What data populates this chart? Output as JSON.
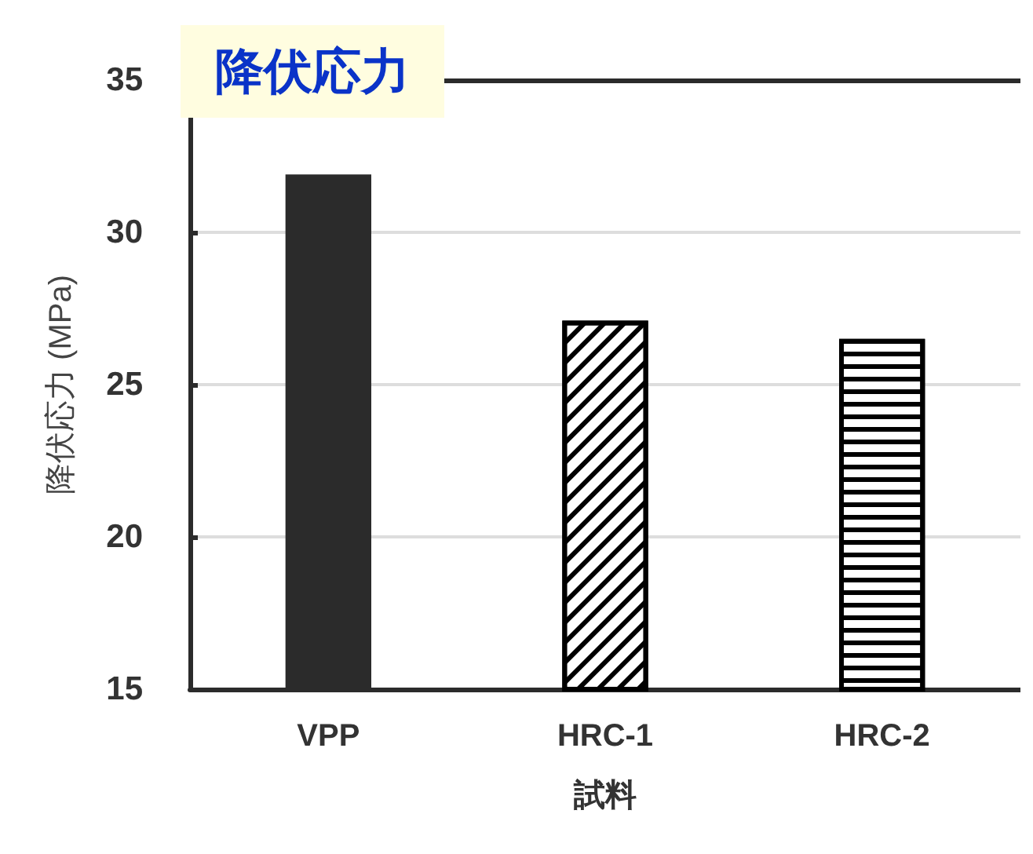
{
  "chart_data": {
    "type": "bar",
    "title": "降伏応力",
    "xlabel": "試料",
    "ylabel": "降伏応力 (MPa)",
    "categories": [
      "VPP",
      "HRC-1",
      "HRC-2"
    ],
    "values": [
      31.9,
      27.1,
      26.5
    ],
    "colors": [
      "#2b2b2b",
      "#ffffff",
      "#ffffff"
    ],
    "ylim": [
      15,
      35
    ],
    "yticks": [
      15,
      20,
      25,
      30,
      35
    ],
    "grid": "y"
  }
}
